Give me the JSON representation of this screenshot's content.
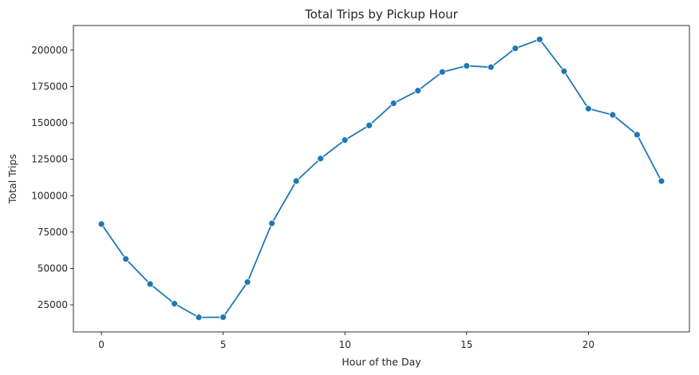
{
  "chart_data": {
    "type": "line",
    "title": "Total Trips by Pickup Hour",
    "xlabel": "Hour of the Day",
    "ylabel": "Total Trips",
    "xlim": [
      -1.15,
      24.15
    ],
    "ylim": [
      6400,
      216900
    ],
    "x_ticks": [
      0,
      5,
      10,
      15,
      20
    ],
    "y_ticks": [
      25000,
      50000,
      75000,
      100000,
      125000,
      150000,
      175000,
      200000
    ],
    "grid": false,
    "line_color": "#1f77b4",
    "marker": "circle",
    "series": [
      {
        "x": [
          0,
          1,
          2,
          3,
          4,
          5,
          6,
          7,
          8,
          9,
          10,
          11,
          12,
          13,
          14,
          15,
          16,
          17,
          18,
          19,
          20,
          21,
          22,
          23
        ],
        "values": [
          80500,
          56500,
          39300,
          25800,
          16400,
          16500,
          40700,
          81000,
          110000,
          125500,
          138200,
          148300,
          163500,
          172200,
          185000,
          189200,
          188300,
          201200,
          207400,
          185500,
          159800,
          155500,
          141900,
          110000
        ]
      }
    ]
  }
}
